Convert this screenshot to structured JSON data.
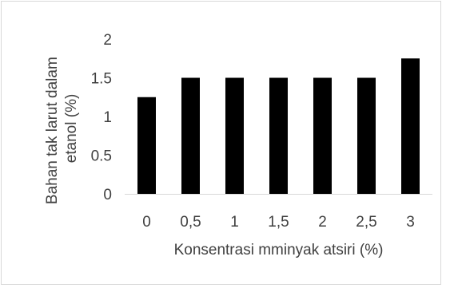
{
  "chart_data": {
    "type": "bar",
    "categories": [
      "0",
      "0,5",
      "1",
      "1,5",
      "2",
      "2,5",
      "3"
    ],
    "values": [
      1.25,
      1.5,
      1.5,
      1.5,
      1.5,
      1.5,
      1.75
    ],
    "xlabel": "Konsentrasi mminyak atsiri (%)",
    "ylabel_lines": [
      "Bahan tak larut dalam",
      "etanol (%)"
    ],
    "ylim": [
      0,
      2
    ],
    "yticks": [
      {
        "value": 0,
        "label": "0"
      },
      {
        "value": 0.5,
        "label": "0.5"
      },
      {
        "value": 1,
        "label": "1"
      },
      {
        "value": 1.5,
        "label": "1.5"
      },
      {
        "value": 2,
        "label": "2"
      }
    ],
    "grid": false,
    "legend": "none",
    "bar_color": "#000000",
    "axis_color": "#d9d9d9"
  }
}
